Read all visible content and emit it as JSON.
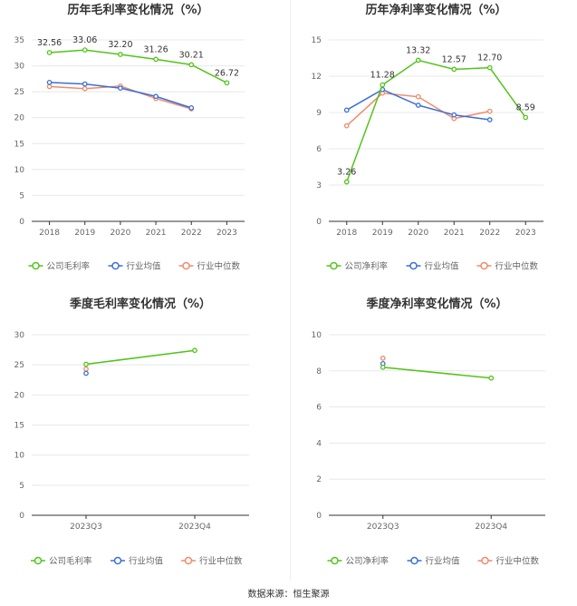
{
  "colors": {
    "company": "#52c41a",
    "industry_avg": "#3a6fd8",
    "industry_median": "#f08a6a",
    "grid": "#e8e8e8",
    "axis": "#333333",
    "tick_text": "#666666",
    "title_text": "#333333"
  },
  "legend_icon": "circle-line-icon",
  "source": "数据来源：恒生聚源",
  "chart_data": [
    {
      "type": "line",
      "title": "历年毛利率变化情况（%）",
      "categories": [
        "2018",
        "2019",
        "2020",
        "2021",
        "2022",
        "2023"
      ],
      "ylim": [
        0,
        35
      ],
      "yticks": [
        0,
        5,
        10,
        15,
        20,
        25,
        30,
        35
      ],
      "grid": true,
      "legend_position": "bottom",
      "series": [
        {
          "name": "公司毛利率",
          "color_key": "company",
          "values": [
            32.56,
            33.06,
            32.2,
            31.26,
            30.21,
            26.72
          ],
          "labels": [
            "32.56",
            "33.06",
            "32.20",
            "31.26",
            "30.21",
            "26.72"
          ]
        },
        {
          "name": "行业均值",
          "color_key": "industry_avg",
          "values": [
            26.8,
            26.5,
            25.7,
            24.1,
            21.9,
            null
          ]
        },
        {
          "name": "行业中位数",
          "color_key": "industry_median",
          "values": [
            26.0,
            25.6,
            26.1,
            23.7,
            21.7,
            null
          ]
        }
      ]
    },
    {
      "type": "line",
      "title": "历年净利率变化情况（%）",
      "categories": [
        "2018",
        "2019",
        "2020",
        "2021",
        "2022",
        "2023"
      ],
      "ylim": [
        0,
        15
      ],
      "yticks": [
        0,
        3,
        6,
        9,
        12,
        15
      ],
      "grid": true,
      "legend_position": "bottom",
      "series": [
        {
          "name": "公司净利率",
          "color_key": "company",
          "values": [
            3.26,
            11.28,
            13.32,
            12.57,
            12.7,
            8.59
          ],
          "labels": [
            "3.26",
            "11.28",
            "13.32",
            "12.57",
            "12.70",
            "8.59"
          ]
        },
        {
          "name": "行业均值",
          "color_key": "industry_avg",
          "values": [
            9.2,
            10.9,
            9.6,
            8.8,
            8.4,
            null
          ]
        },
        {
          "name": "行业中位数",
          "color_key": "industry_median",
          "values": [
            7.9,
            10.6,
            10.3,
            8.5,
            9.1,
            null
          ]
        }
      ]
    },
    {
      "type": "line",
      "title": "季度毛利率变化情况（%）",
      "categories": [
        "2023Q3",
        "2023Q4"
      ],
      "ylim": [
        0,
        30
      ],
      "yticks": [
        0,
        5,
        10,
        15,
        20,
        25,
        30
      ],
      "grid": true,
      "legend_position": "bottom",
      "series": [
        {
          "name": "公司毛利率",
          "color_key": "company",
          "values": [
            25.1,
            27.4
          ]
        },
        {
          "name": "行业均值",
          "color_key": "industry_avg",
          "values": [
            23.6,
            null
          ]
        },
        {
          "name": "行业中位数",
          "color_key": "industry_median",
          "values": [
            24.3,
            null
          ]
        }
      ]
    },
    {
      "type": "line",
      "title": "季度净利率变化情况（%）",
      "categories": [
        "2023Q3",
        "2023Q4"
      ],
      "ylim": [
        0,
        10
      ],
      "yticks": [
        0,
        2,
        4,
        6,
        8,
        10
      ],
      "grid": true,
      "legend_position": "bottom",
      "series": [
        {
          "name": "公司净利率",
          "color_key": "company",
          "values": [
            8.2,
            7.6
          ]
        },
        {
          "name": "行业均值",
          "color_key": "industry_avg",
          "values": [
            8.4,
            null
          ]
        },
        {
          "name": "行业中位数",
          "color_key": "industry_median",
          "values": [
            8.7,
            null
          ]
        }
      ]
    }
  ]
}
